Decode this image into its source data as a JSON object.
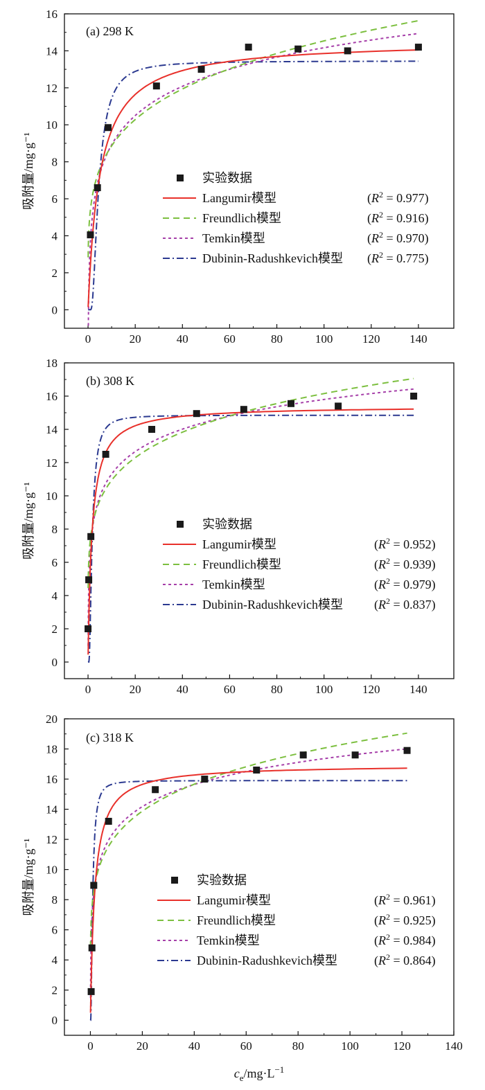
{
  "xlabel": {
    "pre": "c",
    "sub": "e",
    "mid": "/mg·L",
    "sup": "−1"
  },
  "ylabel": "吸附量/mg·g⁻¹",
  "colors": {
    "data": "#1a1a1a",
    "langmuir": "#e8302a",
    "freundlich": "#7cbf3f",
    "temkin": "#a63fa9",
    "dr": "#2b3990"
  },
  "legend_entries": [
    {
      "key": "data",
      "label": "实验数据"
    },
    {
      "key": "langmuir",
      "label": "Langumir模型"
    },
    {
      "key": "freundlich",
      "label": "Freundlich模型"
    },
    {
      "key": "temkin",
      "label": "Temkin模型"
    },
    {
      "key": "dr",
      "label": "Dubinin-Radushkevich模型"
    }
  ],
  "chart_data": [
    {
      "type": "scatter",
      "title": "(a) 298 K",
      "xlim": [
        -10,
        155
      ],
      "ylim": [
        -1,
        16
      ],
      "xticks": [
        0,
        20,
        40,
        60,
        80,
        100,
        120,
        140
      ],
      "yticks": [
        0,
        2,
        4,
        6,
        8,
        10,
        12,
        14,
        16
      ],
      "points": {
        "x": [
          1,
          4,
          8.5,
          29,
          48,
          68,
          89,
          110,
          140
        ],
        "y": [
          4.05,
          6.6,
          9.85,
          12.1,
          13.0,
          14.2,
          14.1,
          14.0,
          14.2
        ]
      },
      "r2": {
        "langmuir": "0.977",
        "freundlich": "0.916",
        "temkin": "0.970",
        "dr": "0.775"
      },
      "models": {
        "langmuir": {
          "qm": 14.55,
          "kl": 0.2
        },
        "freundlich": {
          "kf": 5.4,
          "n": 4.65
        },
        "temkin": {
          "b": 2.28,
          "kt": 5.0
        },
        "dr": {
          "qm": 13.45,
          "k": 18
        }
      },
      "x_end": 140
    },
    {
      "type": "scatter",
      "title": "(b) 308 K",
      "xlim": [
        -10,
        155
      ],
      "ylim": [
        -1,
        18
      ],
      "xticks": [
        0,
        20,
        40,
        60,
        80,
        100,
        120,
        140
      ],
      "yticks": [
        0,
        2,
        4,
        6,
        8,
        10,
        12,
        14,
        16,
        18
      ],
      "points": {
        "x": [
          0,
          0.3,
          1.2,
          7.5,
          27,
          46,
          66,
          86,
          106,
          138
        ],
        "y": [
          2.0,
          4.95,
          7.55,
          12.5,
          14.0,
          14.95,
          15.2,
          15.55,
          15.4,
          16.0
        ]
      },
      "r2": {
        "langmuir": "0.952",
        "freundlich": "0.939",
        "temkin": "0.979",
        "dr": "0.837"
      },
      "models": {
        "langmuir": {
          "qm": 15.4,
          "kl": 0.6
        },
        "freundlich": {
          "kf": 7.4,
          "n": 5.9
        },
        "temkin": {
          "b": 1.95,
          "kt": 33
        },
        "dr": {
          "qm": 14.85,
          "k": 3.5
        }
      },
      "x_end": 138
    },
    {
      "type": "scatter",
      "title": "(c) 318 K",
      "xlim": [
        -10,
        140
      ],
      "ylim": [
        -1,
        20
      ],
      "xticks": [
        0,
        20,
        40,
        60,
        80,
        100,
        120,
        140
      ],
      "yticks": [
        0,
        2,
        4,
        6,
        8,
        10,
        12,
        14,
        16,
        18,
        20
      ],
      "points": {
        "x": [
          0.3,
          0.6,
          1.3,
          7,
          25,
          44,
          64,
          82,
          102,
          122
        ],
        "y": [
          1.9,
          4.8,
          8.95,
          13.2,
          15.3,
          16.0,
          16.6,
          17.6,
          17.6,
          17.9
        ]
      },
      "r2": {
        "langmuir": "0.961",
        "freundlich": "0.925",
        "temkin": "0.984",
        "dr": "0.864"
      },
      "models": {
        "langmuir": {
          "qm": 16.95,
          "kl": 0.6
        },
        "freundlich": {
          "kf": 8.2,
          "n": 5.7
        },
        "temkin": {
          "b": 2.12,
          "kt": 40
        },
        "dr": {
          "qm": 15.9,
          "k": 1.2
        }
      },
      "x_end": 122
    }
  ]
}
